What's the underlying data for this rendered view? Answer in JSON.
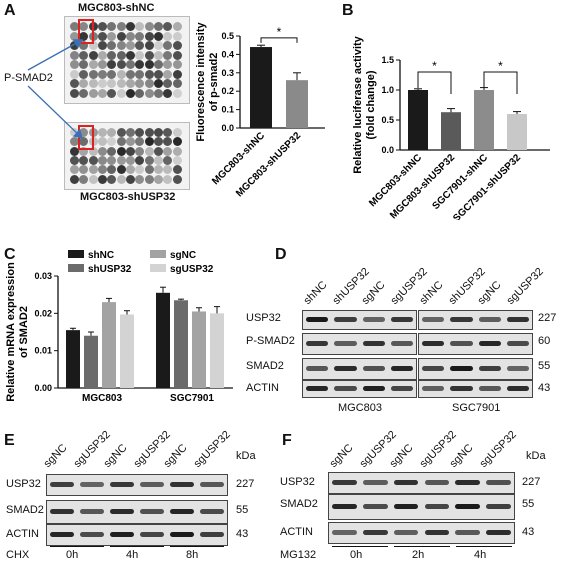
{
  "panels": {
    "A": {
      "letter": "A",
      "array_top_label": "MGC803-shNC",
      "array_bottom_label": "MGC803-shUSP32",
      "arrow_label": "P-SMAD2",
      "chart_data": {
        "type": "bar",
        "categories": [
          "MGC803-shNC",
          "MGC803-shUSP32"
        ],
        "values": [
          0.44,
          0.26
        ],
        "errors": [
          0.01,
          0.04
        ],
        "ylabel": "Fluorescence intensity\nof p-smad2",
        "ylim": [
          0,
          0.5
        ],
        "yticks": [
          "0.0",
          "0.1",
          "0.2",
          "0.3",
          "0.4",
          "0.5"
        ],
        "annotations": [
          "*"
        ],
        "colors": [
          "#1a1a1a",
          "#8a8a8a"
        ]
      }
    },
    "B": {
      "letter": "B",
      "chart_data": {
        "type": "bar",
        "categories": [
          "MGC803-shNC",
          "MGC803-shUSP32",
          "SGC7901-shNC",
          "SGC7901-shUSP32"
        ],
        "values": [
          1.0,
          0.63,
          1.0,
          0.6
        ],
        "errors": [
          0.02,
          0.06,
          0.04,
          0.04
        ],
        "ylabel": "Relative luciferase activity\n(fold change)",
        "ylim": [
          0,
          1.5
        ],
        "yticks": [
          "0.0",
          "0.5",
          "1.0",
          "1.5"
        ],
        "annotations": [
          "*",
          "*"
        ],
        "colors": [
          "#1a1a1a",
          "#5a5a5a",
          "#8c8c8c",
          "#c8c8c8"
        ]
      }
    },
    "C": {
      "letter": "C",
      "chart_data": {
        "type": "bar",
        "categories": [
          "MGC803",
          "SGC7901"
        ],
        "series": [
          {
            "name": "shNC",
            "values": [
              0.0155,
              0.0255
            ],
            "errors": [
              0.0005,
              0.0015
            ],
            "color": "#1a1a1a"
          },
          {
            "name": "shUSP32",
            "values": [
              0.014,
              0.0235
            ],
            "errors": [
              0.001,
              0.0003
            ],
            "color": "#6b6b6b"
          },
          {
            "name": "sgNC",
            "values": [
              0.023,
              0.0205
            ],
            "errors": [
              0.001,
              0.001
            ],
            "color": "#a3a3a3"
          },
          {
            "name": "sgUSP32",
            "values": [
              0.0197,
              0.02
            ],
            "errors": [
              0.001,
              0.0018
            ],
            "color": "#d3d3d3"
          }
        ],
        "ylabel": "Relative mRNA expression\nof SMAD2",
        "ylim": [
          0,
          0.03
        ],
        "yticks": [
          "0.00",
          "0.01",
          "0.02",
          "0.03"
        ],
        "legend": "top"
      }
    },
    "D": {
      "letter": "D",
      "lanes": [
        "shNC",
        "shUSP32",
        "sgNC",
        "sgUSP32",
        "shNC",
        "shUSP32",
        "sgNC",
        "sgUSP32"
      ],
      "rows": [
        {
          "label": "USP32",
          "kda": "227"
        },
        {
          "label": "P-SMAD2",
          "kda": "60"
        },
        {
          "label": "SMAD2",
          "kda": "55"
        },
        {
          "label": "ACTIN",
          "kda": "43"
        }
      ],
      "groups": [
        "MGC803",
        "SGC7901"
      ]
    },
    "E": {
      "letter": "E",
      "kda_label": "kDa",
      "lanes": [
        "sgNC",
        "sgUSP32",
        "sgNC",
        "sgUSP32",
        "sgNC",
        "sgUSP32"
      ],
      "rows": [
        {
          "label": "USP32",
          "kda": "227"
        },
        {
          "label": "SMAD2",
          "kda": "55"
        },
        {
          "label": "ACTIN",
          "kda": "43"
        }
      ],
      "treatment": "CHX",
      "timepoints": [
        "0h",
        "4h",
        "8h"
      ]
    },
    "F": {
      "letter": "F",
      "kda_label": "kDa",
      "lanes": [
        "sgNC",
        "sgUSP32",
        "sgNC",
        "sgUSP32",
        "sgNC",
        "sgUSP32"
      ],
      "rows": [
        {
          "label": "USP32",
          "kda": "227"
        },
        {
          "label": "SMAD2",
          "kda": "55"
        },
        {
          "label": "ACTIN",
          "kda": "43"
        }
      ],
      "treatment": "MG132",
      "timepoints": [
        "0h",
        "2h",
        "4h"
      ]
    }
  }
}
